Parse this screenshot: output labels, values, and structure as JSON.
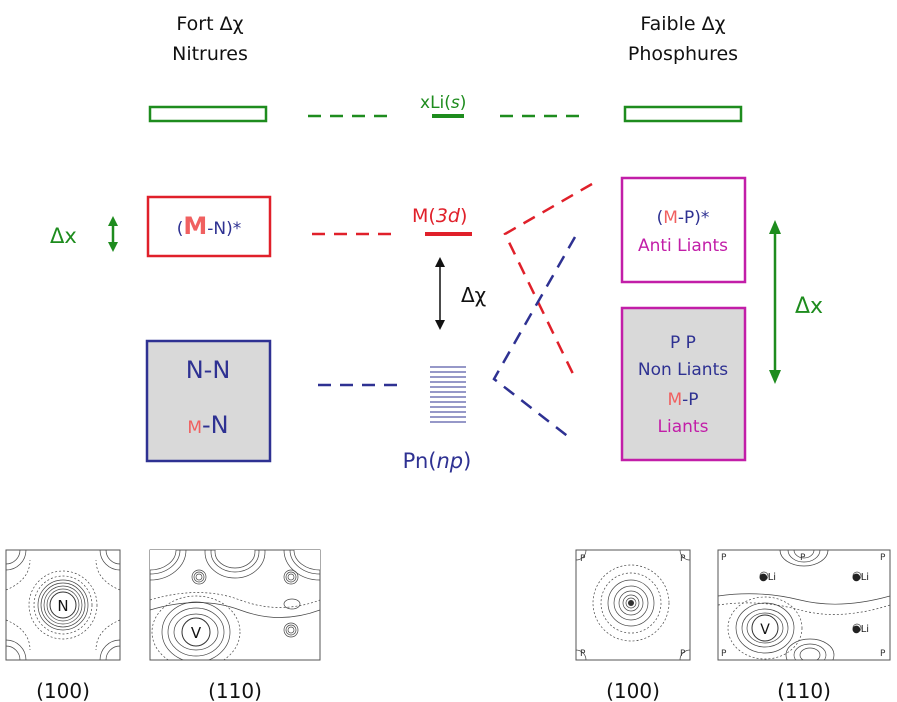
{
  "headers": {
    "left_line1": "Fort Δχ",
    "left_line2": "Nitrures",
    "right_line1": "Faible Δχ",
    "right_line2": "Phosphures"
  },
  "center": {
    "li_prefix": "x",
    "li_label": "Li(",
    "li_s": "s",
    "li_close": ")",
    "m_label": "M(",
    "m_3d": "3d",
    "m_close": ")",
    "delta_chi": "Δχ",
    "pn_label": "Pn(",
    "pn_np": "np",
    "pn_close": ")"
  },
  "left": {
    "delta_x": "Δx",
    "antibond_open": "(",
    "antibond_m": "M",
    "antibond_rest": "-N)*",
    "nn": "N-N",
    "mn_m": "M",
    "mn_rest": "-N"
  },
  "right": {
    "antibond_open": "(",
    "antibond_m": "M",
    "antibond_rest": "-P)*",
    "anti_liants": "Anti Liants",
    "pp": "P P",
    "non_liants": "Non Liants",
    "mp_m": "M",
    "mp_rest": "-P",
    "liants": "Liants",
    "delta_x": "Δx"
  },
  "maps": {
    "n_label": "N",
    "v_label": "V",
    "v_label_right": "V",
    "li_atom": "●Li",
    "p_atom": "P",
    "captions": [
      "(100)",
      "(110)",
      "(100)",
      "(110)"
    ]
  },
  "colors": {
    "green": "#1e8c1e",
    "red": "#e0202a",
    "blue": "#2e3192",
    "magenta": "#c21ea8",
    "grey_fill": "#d9d9d9",
    "salmon": "#f06060"
  }
}
